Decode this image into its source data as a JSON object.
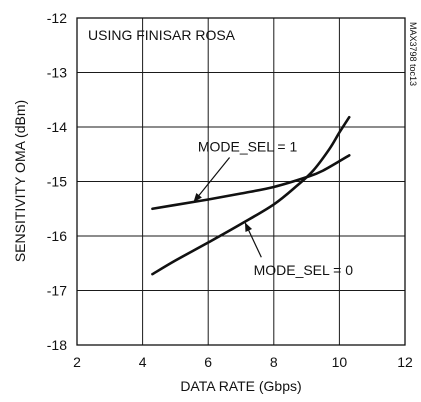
{
  "chart_data": {
    "type": "line",
    "title": "",
    "xlabel": "DATA RATE (Gbps)",
    "ylabel": "SENSITIVITY OMA (dBm)",
    "xlim": [
      2,
      12
    ],
    "ylim": [
      -18,
      -12
    ],
    "x_ticks": [
      2,
      4,
      6,
      8,
      10,
      12
    ],
    "y_ticks": [
      -12,
      -13,
      -14,
      -15,
      -16,
      -17,
      -18
    ],
    "x_tick_labels": [
      "2",
      "4",
      "6",
      "8",
      "10",
      "12"
    ],
    "y_tick_labels": [
      "-12",
      "-13",
      "-14",
      "-15",
      "-16",
      "-17",
      "-18"
    ],
    "grid": true,
    "annotations": {
      "condition": "USING FINISAR ROSA",
      "watermark": "MAX3798 toc13"
    },
    "series": [
      {
        "label": "MODE_SEL = 1",
        "x": [
          4.3,
          5.0,
          6.0,
          7.0,
          8.0,
          9.0,
          9.5,
          10.3
        ],
        "y": [
          -15.5,
          -15.43,
          -15.33,
          -15.22,
          -15.1,
          -14.92,
          -14.8,
          -14.52
        ],
        "label_anchor": {
          "x": 7.2,
          "y": -14.45
        },
        "arrow_to": {
          "x": 5.55,
          "y": -15.38
        }
      },
      {
        "label": "MODE_SEL = 0",
        "x": [
          4.3,
          5.0,
          6.0,
          7.0,
          8.0,
          8.7,
          9.2,
          9.7,
          10.0,
          10.3
        ],
        "y": [
          -16.7,
          -16.45,
          -16.12,
          -15.78,
          -15.42,
          -15.08,
          -14.8,
          -14.4,
          -14.1,
          -13.82
        ],
        "label_anchor": {
          "x": 8.9,
          "y": -16.72
        },
        "arrow_to": {
          "x": 7.12,
          "y": -15.75
        }
      }
    ]
  }
}
